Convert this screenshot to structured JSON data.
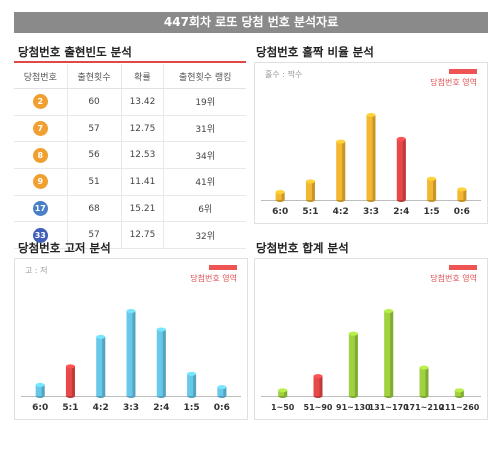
{
  "banner": {
    "title": "447회차 로또 당첨 번호 분석자료"
  },
  "freq": {
    "title": "당첨번호 출현빈도 분석",
    "headers": [
      "당첨번호",
      "출현횟수",
      "확률",
      "출현횟수 랭킹"
    ],
    "rows": [
      {
        "num": "2",
        "count": "60",
        "prob": "13.42",
        "rank": "19위",
        "color": "#f0a030"
      },
      {
        "num": "7",
        "count": "57",
        "prob": "12.75",
        "rank": "31위",
        "color": "#f0a030"
      },
      {
        "num": "8",
        "count": "56",
        "prob": "12.53",
        "rank": "34위",
        "color": "#f0a030"
      },
      {
        "num": "9",
        "count": "51",
        "prob": "11.41",
        "rank": "41위",
        "color": "#f0a030"
      },
      {
        "num": "17",
        "count": "68",
        "prob": "15.21",
        "rank": "6위",
        "color": "#4a7fc8"
      },
      {
        "num": "33",
        "count": "57",
        "prob": "12.75",
        "rank": "32위",
        "color": "#3f5fb8"
      }
    ]
  },
  "oddEven": {
    "title": "당첨번호 홀짝 비율 분석",
    "tag": "홀수 : 짝수",
    "legend": "당첨번호 영역"
  },
  "highLow": {
    "title": "당첨번호 고저 분석",
    "tag": "고 : 저",
    "legend": "당첨번호 영역"
  },
  "sum": {
    "title": "당첨번호 합계 분석",
    "legend": "당첨번호 영역"
  },
  "colors": {
    "yellow": "#f4b731",
    "blue": "#67c8ea",
    "green": "#9fd140",
    "red": "#e84848"
  },
  "chart_data": [
    {
      "type": "bar",
      "title": "당첨번호 홀짝 비율 분석",
      "categories": [
        "6:0",
        "5:1",
        "4:2",
        "3:3",
        "2:4",
        "1:5",
        "0:6"
      ],
      "values": [
        1.5,
        3.5,
        11,
        16,
        11.5,
        4,
        2
      ],
      "highlight_index": 4,
      "bar_color": "yellow"
    },
    {
      "type": "bar",
      "title": "당첨번호 고저 분석",
      "categories": [
        "6:0",
        "5:1",
        "4:2",
        "3:3",
        "2:4",
        "1:5",
        "0:6"
      ],
      "values": [
        1.5,
        4,
        8,
        11.5,
        9,
        3,
        1.2
      ],
      "highlight_index": 1,
      "bar_color": "blue"
    },
    {
      "type": "bar",
      "title": "당첨번호 합계 분석",
      "categories": [
        "1~50",
        "51~90",
        "91~130",
        "131~170",
        "171~210",
        "211~260"
      ],
      "values": [
        1,
        3.5,
        11,
        15,
        5,
        1
      ],
      "highlight_index": 1,
      "bar_color": "green"
    }
  ]
}
